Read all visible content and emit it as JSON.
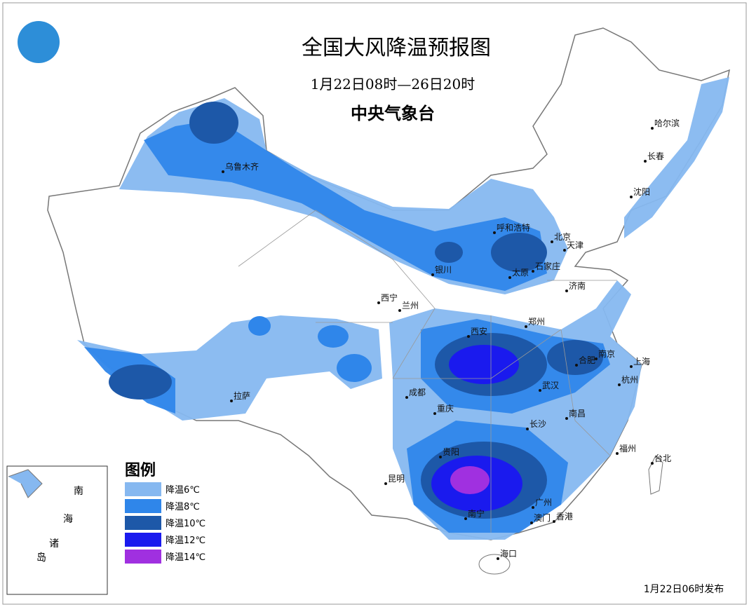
{
  "header": {
    "title": "全国大风降温预报图",
    "period": "1月22日08时—26日20时",
    "issuer": "中央气象台"
  },
  "legend": {
    "title": "图例",
    "items": [
      {
        "label": "降温6℃",
        "color": "#86b8f0"
      },
      {
        "label": "降温8℃",
        "color": "#2f86ea"
      },
      {
        "label": "降温10℃",
        "color": "#1d58a8"
      },
      {
        "label": "降温12℃",
        "color": "#1a1aee"
      },
      {
        "label": "降温14℃",
        "color": "#a030e0"
      }
    ]
  },
  "cities": [
    "乌鲁木齐",
    "拉萨",
    "西宁",
    "兰州",
    "银川",
    "呼和浩特",
    "北京",
    "天津",
    "太原",
    "石家庄",
    "济南",
    "郑州",
    "西安",
    "合肥",
    "南京",
    "上海",
    "杭州",
    "武汉",
    "成都",
    "重庆",
    "长沙",
    "南昌",
    "福州",
    "台北",
    "贵阳",
    "昆明",
    "南宁",
    "广州",
    "澳门",
    "香港",
    "海口",
    "哈尔滨",
    "长春",
    "沈阳"
  ],
  "inset": {
    "labels": [
      "南",
      "海",
      "诸",
      "岛"
    ]
  },
  "footer": "1月22日06时发布"
}
